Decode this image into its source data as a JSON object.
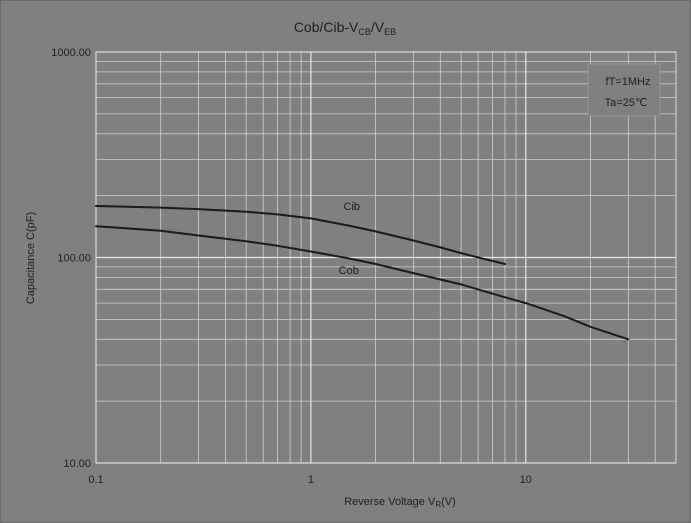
{
  "chart_data": {
    "type": "line",
    "title": {
      "main": "Cob/Cib-V",
      "sub1": "CB",
      "sep": "/V",
      "sub2": "EB"
    },
    "xlabel": {
      "main": "Reverse Voltage  V",
      "sub": "R",
      "unit": "(V)"
    },
    "ylabel": "Capacitance  C(pF)",
    "x_scale": "log",
    "y_scale": "log",
    "xlim": [
      0.1,
      50
    ],
    "ylim": [
      10,
      1000
    ],
    "x_ticks": [
      {
        "value": 0.1,
        "label": "0.1"
      },
      {
        "value": 1,
        "label": "1"
      },
      {
        "value": 10,
        "label": "10"
      }
    ],
    "y_ticks": [
      {
        "value": 10,
        "label": "10.00"
      },
      {
        "value": 100,
        "label": "100.00"
      },
      {
        "value": 1000,
        "label": "1000.00"
      }
    ],
    "grid": true,
    "conditions": [
      "fT=1MHz",
      "Ta=25℃"
    ],
    "series": [
      {
        "name": "Cib",
        "color": "#1a1a1a",
        "label_at": [
          1.55,
          170
        ],
        "points": [
          [
            0.1,
            178
          ],
          [
            0.2,
            175
          ],
          [
            0.3,
            172
          ],
          [
            0.5,
            167
          ],
          [
            0.7,
            162
          ],
          [
            1.0,
            155
          ],
          [
            1.5,
            143
          ],
          [
            2.0,
            134
          ],
          [
            3.0,
            121
          ],
          [
            4.0,
            112
          ],
          [
            5.0,
            105
          ],
          [
            6.5,
            98
          ],
          [
            8.0,
            93
          ]
        ]
      },
      {
        "name": "Cob",
        "color": "#1a1a1a",
        "label_at": [
          1.5,
          83
        ],
        "points": [
          [
            0.1,
            142
          ],
          [
            0.2,
            135
          ],
          [
            0.3,
            128
          ],
          [
            0.5,
            120
          ],
          [
            0.7,
            114
          ],
          [
            1.0,
            107
          ],
          [
            1.5,
            99
          ],
          [
            2.0,
            93
          ],
          [
            3.0,
            84
          ],
          [
            5.0,
            74
          ],
          [
            8.0,
            64
          ],
          [
            10,
            60
          ],
          [
            15,
            52
          ],
          [
            20,
            46
          ],
          [
            30,
            40
          ]
        ]
      }
    ]
  }
}
